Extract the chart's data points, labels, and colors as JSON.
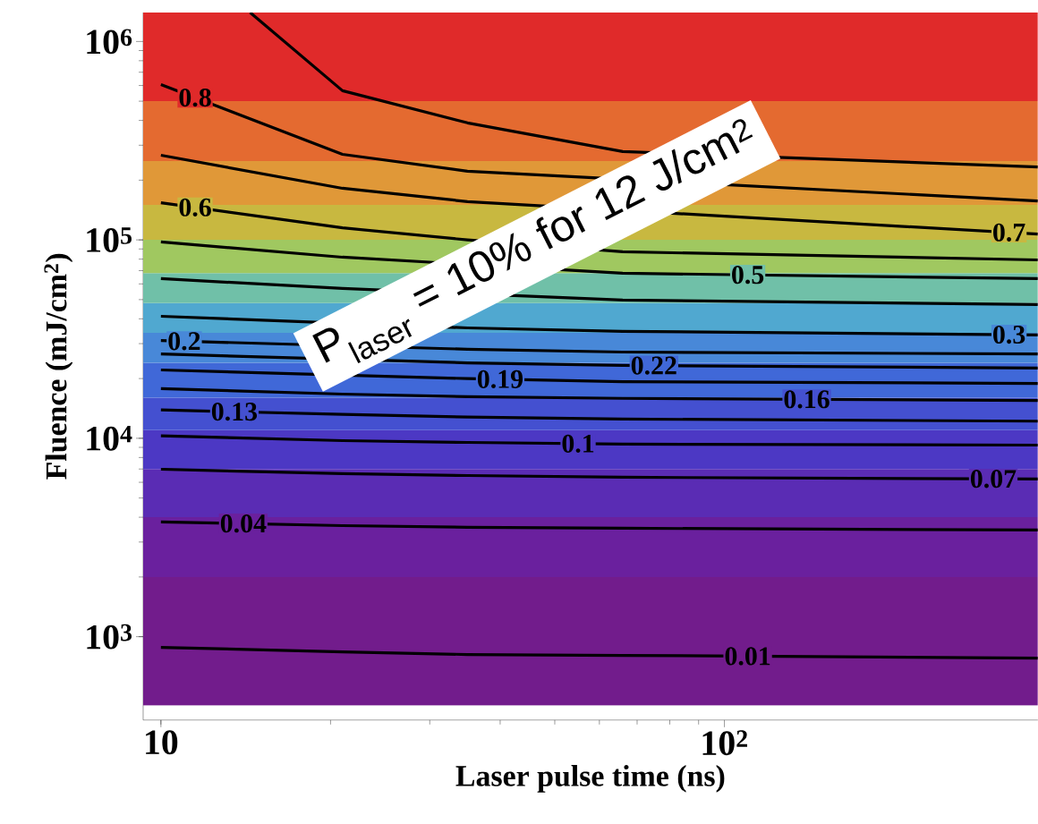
{
  "chart_data": {
    "type": "line",
    "xlabel": "Laser pulse time (ns)",
    "ylabel": "Fluence (mJ/cm$^{2}$)",
    "log": "xy",
    "xlim": [
      9.3,
      360
    ],
    "ylim": [
      380,
      1400000
    ],
    "xticks": [
      10,
      {
        "value": 100,
        "label": "10$^{2}$"
      }
    ],
    "yticks": [
      {
        "value": 1000,
        "label": "10$^{3}$"
      },
      {
        "value": 10000,
        "label": "10$^{4}$"
      },
      {
        "value": 100000,
        "label": "10$^{5}$"
      },
      {
        "value": 1000000,
        "label": "10$^{6}$"
      }
    ],
    "grid": false,
    "legend": false,
    "marker": "none",
    "line_style": "solid",
    "annotations": [
      "P$_{laser}$ = 10% for 12 J/cm$^{2}$"
    ],
    "bands": [
      {
        "axis": "y",
        "from": 450,
        "to": 2000,
        "color": "#721c8c"
      },
      {
        "axis": "y",
        "from": 2000,
        "to": 4000,
        "color": "#6a209e"
      },
      {
        "axis": "y",
        "from": 4000,
        "to": 7000,
        "color": "#5a2cb4"
      },
      {
        "axis": "y",
        "from": 7000,
        "to": 11000,
        "color": "#4c38c4"
      },
      {
        "axis": "y",
        "from": 11000,
        "to": 16000,
        "color": "#4450d0"
      },
      {
        "axis": "y",
        "from": 16000,
        "to": 24000,
        "color": "#4068d8"
      },
      {
        "axis": "y",
        "from": 24000,
        "to": 34000,
        "color": "#4888d8"
      },
      {
        "axis": "y",
        "from": 34000,
        "to": 48000,
        "color": "#50a8d0"
      },
      {
        "axis": "y",
        "from": 48000,
        "to": 68000,
        "color": "#70c0a8"
      },
      {
        "axis": "y",
        "from": 68000,
        "to": 100000,
        "color": "#a0c860"
      },
      {
        "axis": "y",
        "from": 100000,
        "to": 150000,
        "color": "#c8b840"
      },
      {
        "axis": "y",
        "from": 150000,
        "to": 250000,
        "color": "#e09838"
      },
      {
        "axis": "y",
        "from": 250000,
        "to": 500000,
        "color": "#e46a30"
      },
      {
        "axis": "y",
        "from": 500000,
        "to": 1400000,
        "color": "#e02a2a"
      }
    ],
    "series": [
      {
        "color": "#000000",
        "x": [
          14.4,
          21,
          35,
          66,
          360
        ],
        "values": [
          1400000,
          565000,
          389000,
          279000,
          233000
        ]
      },
      {
        "name": "0.8",
        "color": "#000000",
        "x": [
          10,
          21,
          35,
          66,
          360
        ],
        "values": [
          607000,
          270000,
          222000,
          null,
          157000
        ]
      },
      {
        "name": "0.7",
        "color": "#000000",
        "x": [
          10,
          21,
          35,
          66,
          360
        ],
        "values": [
          267000,
          182000,
          156000,
          null,
          107000
        ]
      },
      {
        "name": "0.6",
        "color": "#000000",
        "x": [
          10,
          21,
          35,
          66,
          360
        ],
        "values": [
          154000,
          115000,
          100000,
          87100,
          79300
        ]
      },
      {
        "name": "0.5",
        "color": "#000000",
        "x": [
          10,
          21,
          35,
          66,
          360
        ],
        "values": [
          97700,
          81800,
          null,
          67900,
          63800
        ]
      },
      {
        "color": "#000000",
        "x": [
          10,
          21,
          35,
          66,
          360
        ],
        "values": [
          63800,
          56900,
          null,
          49700,
          47200
        ]
      },
      {
        "name": "0.3",
        "color": "#000000",
        "x": [
          10,
          21,
          35,
          66,
          360
        ],
        "values": [
          41200,
          null,
          36000,
          34600,
          33200
        ]
      },
      {
        "name": "0.2",
        "color": "#000000",
        "x": [
          10,
          21,
          35,
          66,
          360
        ],
        "values": [
          31100,
          null,
          28100,
          27200,
          26600
        ]
      },
      {
        "name": "0.22",
        "color": "#000000",
        "x": [
          10,
          21,
          35,
          66,
          360
        ],
        "values": [
          26600,
          null,
          24000,
          23300,
          22600
        ]
      },
      {
        "name": "0.19",
        "color": "#000000",
        "x": [
          10,
          21,
          35,
          66,
          360
        ],
        "values": [
          22100,
          null,
          20000,
          19300,
          18900
        ]
      },
      {
        "name": "0.16",
        "color": "#000000",
        "x": [
          10,
          21,
          35,
          66,
          360
        ],
        "values": [
          17800,
          16700,
          16200,
          15900,
          15500
        ]
      },
      {
        "name": "0.13",
        "color": "#000000",
        "x": [
          10,
          21,
          35,
          66,
          360
        ],
        "values": [
          13900,
          13200,
          12800,
          12500,
          12200
        ]
      },
      {
        "name": "0.1",
        "color": "#000000",
        "x": [
          10,
          21,
          35,
          66,
          360
        ],
        "values": [
          10300,
          9730,
          9530,
          9340,
          9240
        ]
      },
      {
        "name": "0.07",
        "color": "#000000",
        "x": [
          10,
          21,
          35,
          66,
          360
        ],
        "values": [
          6980,
          6630,
          6490,
          6360,
          6230
        ]
      },
      {
        "name": "0.04",
        "color": "#000000",
        "x": [
          10,
          21,
          35,
          66,
          360
        ],
        "values": [
          3790,
          3630,
          3560,
          3520,
          3450
        ]
      },
      {
        "name": "0.01",
        "color": "#000000",
        "x": [
          10,
          21,
          35,
          66,
          360
        ],
        "values": [
          883,
          839,
          813,
          805,
          780
        ]
      }
    ]
  }
}
